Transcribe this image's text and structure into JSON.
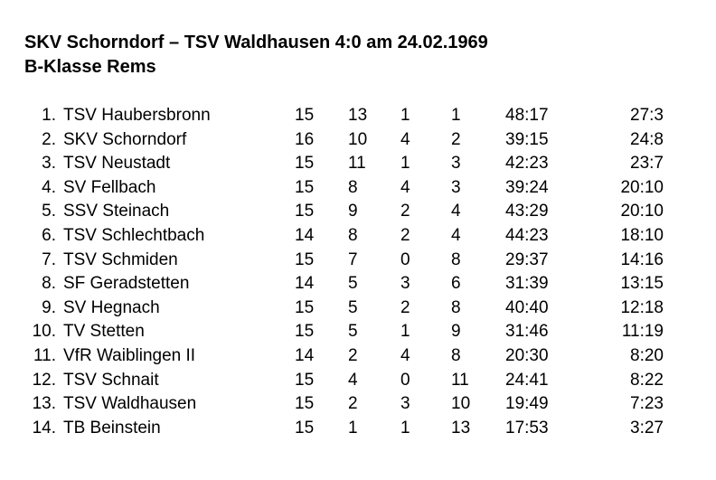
{
  "title": {
    "line1": "SKV Schorndorf – TSV Waldhausen 4:0 am 24.02.1969",
    "line2": "B-Klasse Rems"
  },
  "table": {
    "rows": [
      {
        "rank": "1.",
        "team": "TSV Haubersbronn",
        "games": "15",
        "wins": "13",
        "draws": "1",
        "losses": "1",
        "goals": "48:17",
        "points": "27:3"
      },
      {
        "rank": "2.",
        "team": "SKV Schorndorf",
        "games": "16",
        "wins": "10",
        "draws": "4",
        "losses": "2",
        "goals": "39:15",
        "points": "24:8"
      },
      {
        "rank": "3.",
        "team": "TSV Neustadt",
        "games": "15",
        "wins": "11",
        "draws": "1",
        "losses": "3",
        "goals": "42:23",
        "points": "23:7"
      },
      {
        "rank": "4.",
        "team": "SV Fellbach",
        "games": "15",
        "wins": "8",
        "draws": "4",
        "losses": "3",
        "goals": "39:24",
        "points": "20:10"
      },
      {
        "rank": "5.",
        "team": "SSV Steinach",
        "games": "15",
        "wins": "9",
        "draws": "2",
        "losses": "4",
        "goals": "43:29",
        "points": "20:10"
      },
      {
        "rank": "6.",
        "team": "TSV Schlechtbach",
        "games": "14",
        "wins": "8",
        "draws": "2",
        "losses": "4",
        "goals": "44:23",
        "points": "18:10"
      },
      {
        "rank": "7.",
        "team": "TSV Schmiden",
        "games": "15",
        "wins": "7",
        "draws": "0",
        "losses": "8",
        "goals": "29:37",
        "points": "14:16"
      },
      {
        "rank": "8.",
        "team": "SF Geradstetten",
        "games": "14",
        "wins": "5",
        "draws": "3",
        "losses": "6",
        "goals": "31:39",
        "points": "13:15"
      },
      {
        "rank": "9.",
        "team": "SV Hegnach",
        "games": "15",
        "wins": "5",
        "draws": "2",
        "losses": "8",
        "goals": "40:40",
        "points": "12:18"
      },
      {
        "rank": "10.",
        "team": "TV Stetten",
        "games": "15",
        "wins": "5",
        "draws": "1",
        "losses": "9",
        "goals": "31:46",
        "points": "11:19"
      },
      {
        "rank": "11.",
        "team": "VfR Waiblingen II",
        "games": "14",
        "wins": "2",
        "draws": "4",
        "losses": "8",
        "goals": "20:30",
        "points": "8:20"
      },
      {
        "rank": "12.",
        "team": "TSV Schnait",
        "games": "15",
        "wins": "4",
        "draws": "0",
        "losses": "11",
        "goals": "24:41",
        "points": "8:22"
      },
      {
        "rank": "13.",
        "team": "TSV Waldhausen",
        "games": "15",
        "wins": "2",
        "draws": "3",
        "losses": "10",
        "goals": "19:49",
        "points": "7:23"
      },
      {
        "rank": "14.",
        "team": "TB Beinstein",
        "games": "15",
        "wins": "1",
        "draws": "1",
        "losses": "13",
        "goals": "17:53",
        "points": "3:27"
      }
    ]
  }
}
